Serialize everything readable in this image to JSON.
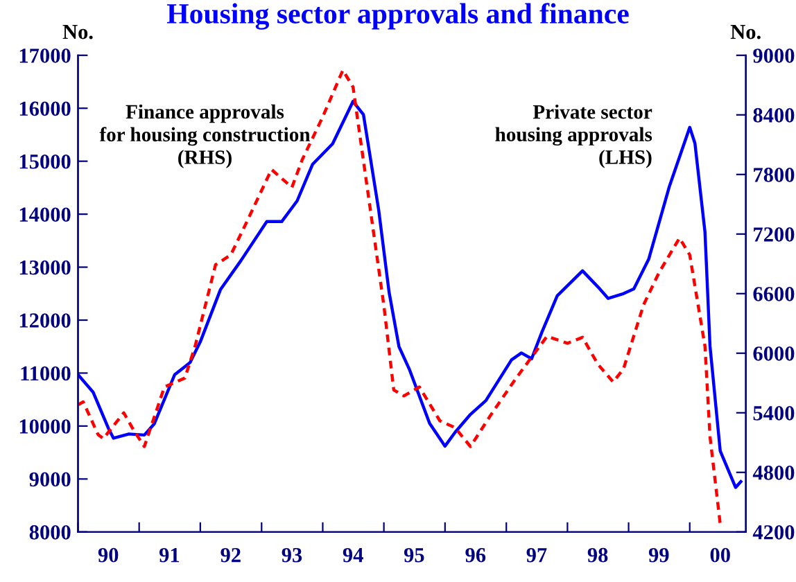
{
  "chart_data": {
    "type": "line",
    "title": "Housing sector approvals and finance",
    "ylabel": "No.",
    "y2label": "No.",
    "xlim": [
      "1990-01",
      "2000-12"
    ],
    "xticks": [
      {
        "value": "1990-01",
        "label": null
      },
      {
        "value": "1991-01",
        "label": null
      },
      {
        "value": "1992-01",
        "label": null
      },
      {
        "value": "1993-01",
        "label": null
      },
      {
        "value": "1994-01",
        "label": null
      },
      {
        "value": "1995-01",
        "label": null
      },
      {
        "value": "1996-01",
        "label": null
      },
      {
        "value": "1997-01",
        "label": null
      },
      {
        "value": "1998-01",
        "label": null
      },
      {
        "value": "1999-01",
        "label": null
      },
      {
        "value": "2000-01",
        "label": null
      },
      {
        "value": "1990-07",
        "label": "90"
      },
      {
        "value": "1991-07",
        "label": "91"
      },
      {
        "value": "1992-07",
        "label": "92"
      },
      {
        "value": "1993-07",
        "label": "93"
      },
      {
        "value": "1994-07",
        "label": "94"
      },
      {
        "value": "1995-07",
        "label": "95"
      },
      {
        "value": "1996-07",
        "label": "96"
      },
      {
        "value": "1997-07",
        "label": "97"
      },
      {
        "value": "1998-07",
        "label": "98"
      },
      {
        "value": "1999-07",
        "label": "99"
      },
      {
        "value": "2000-07",
        "label": "00"
      }
    ],
    "ylim": [
      8000,
      17000
    ],
    "yticks": [
      8000,
      9000,
      10000,
      11000,
      12000,
      13000,
      14000,
      15000,
      16000,
      17000
    ],
    "y2lim": [
      4200,
      9000
    ],
    "y2ticks": [
      4200,
      4800,
      5400,
      6000,
      6600,
      7200,
      7800,
      8400,
      9000
    ],
    "grid": false,
    "legend": false,
    "series": [
      {
        "name": "Private sector\nhousing approvals\n(LHS)",
        "color": "#0000ff",
        "line_style": "solid",
        "x": [
          "1990-01",
          "1990-04",
          "1990-07",
          "1990-08",
          "1990-11",
          "1991-02",
          "1991-04",
          "1991-08",
          "1991-10",
          "1991-11",
          "1992-01",
          "1992-05",
          "1992-09",
          "1993-02",
          "1993-05",
          "1993-08",
          "1993-11",
          "1994-03",
          "1994-07",
          "1994-09",
          "1994-12",
          "1995-02",
          "1995-04",
          "1995-06",
          "1995-10",
          "1996-01",
          "1996-03",
          "1996-06",
          "1996-09",
          "1997-02",
          "1997-04",
          "1997-06",
          "1997-08",
          "1997-11",
          "1998-04",
          "1998-07",
          "1998-09",
          "1998-12",
          "1999-02",
          "1999-05",
          "1999-09",
          "2000-01",
          "2000-02",
          "2000-04",
          "2000-05",
          "2000-07",
          "2000-10",
          "2000-11"
        ],
        "values": [
          10970,
          10640,
          9960,
          9770,
          9850,
          9830,
          10040,
          10970,
          11120,
          11200,
          11590,
          12580,
          13130,
          13860,
          13860,
          14250,
          14940,
          15330,
          16130,
          15880,
          14080,
          12530,
          11500,
          11080,
          10050,
          9620,
          9880,
          10220,
          10480,
          11250,
          11380,
          11270,
          11770,
          12460,
          12930,
          12630,
          12410,
          12500,
          12590,
          13150,
          14520,
          15640,
          15340,
          13660,
          11510,
          9530,
          8840,
          8950
        ]
      },
      {
        "name": "Finance approvals\nfor housing construction\n(RHS)",
        "color": "#ff0000",
        "line_style": "dashed",
        "axis": "y2",
        "x": [
          "1990-01",
          "1990-02",
          "1990-05",
          "1990-06",
          "1990-10",
          "1990-12",
          "1991-02",
          "1991-06",
          "1991-10",
          "1991-12",
          "1992-04",
          "1992-07",
          "1992-10",
          "1993-03",
          "1993-07",
          "1993-09",
          "1994-01",
          "1994-05",
          "1994-07",
          "1994-10",
          "1995-01",
          "1995-03",
          "1995-05",
          "1995-08",
          "1995-12",
          "1996-03",
          "1996-06",
          "1996-10",
          "1997-03",
          "1997-09",
          "1998-01",
          "1998-04",
          "1998-07",
          "1998-10",
          "1998-12",
          "1999-04",
          "1999-07",
          "1999-11",
          "2000-01",
          "2000-04",
          "2000-05",
          "2000-07"
        ],
        "values": [
          5480,
          5510,
          5180,
          5140,
          5400,
          5220,
          5060,
          5660,
          5750,
          6070,
          6890,
          6990,
          7310,
          7850,
          7670,
          7950,
          8380,
          8850,
          8680,
          7580,
          6480,
          5630,
          5570,
          5660,
          5320,
          5250,
          5060,
          5380,
          5750,
          6170,
          6100,
          6160,
          5890,
          5710,
          5840,
          6490,
          6810,
          7160,
          6990,
          6070,
          5160,
          4280
        ]
      }
    ]
  }
}
